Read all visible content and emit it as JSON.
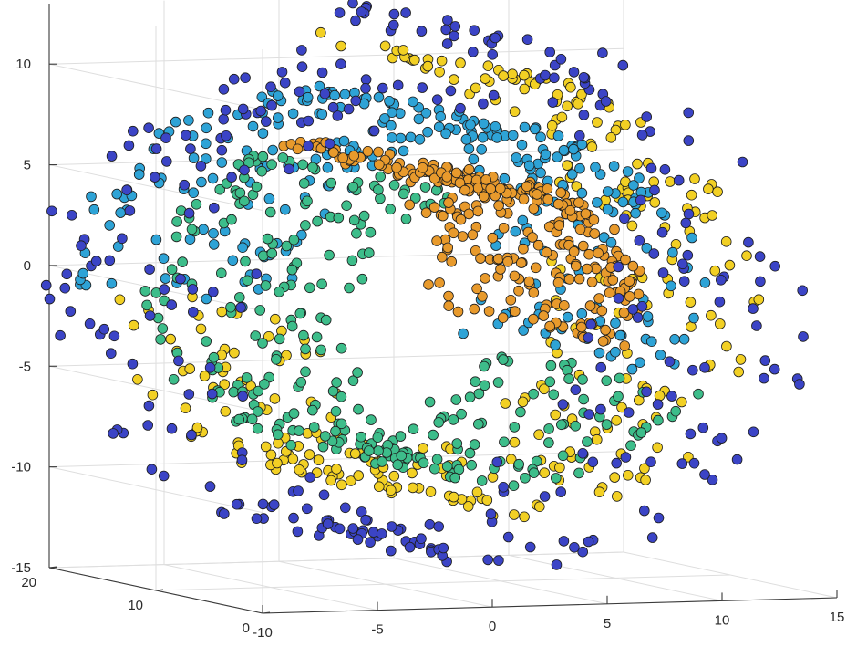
{
  "chart_data": {
    "type": "scatter",
    "subtype": "3d-swiss-roll",
    "title": "",
    "xlabel": "",
    "ylabel": "",
    "zlabel": "",
    "xlim": [
      -10,
      15
    ],
    "ylim": [
      0,
      20
    ],
    "zlim": [
      -15,
      13
    ],
    "x_ticks": [
      "-10",
      "-5",
      "0",
      "5",
      "10",
      "15"
    ],
    "y_ticks": [
      "0",
      "10",
      "20"
    ],
    "z_ticks": [
      "-15",
      "-10",
      "-5",
      "0",
      "5",
      "10"
    ],
    "grid": true,
    "legend": "none",
    "points_per_series": 300,
    "series": [
      {
        "color": "#f2d024",
        "t_range": [
          1.5,
          2.25
        ],
        "radius_range": [
          8.6,
          11.7
        ]
      },
      {
        "color": "#2ea3d6",
        "t_range": [
          0.93,
          1.5
        ],
        "radius_range": [
          7.6,
          10.5
        ]
      },
      {
        "color": "#3dbd8a",
        "t_range": [
          0.3,
          0.93
        ],
        "radius_range": [
          6.4,
          8.8
        ]
      },
      {
        "color": "#e89a2c",
        "t_range": [
          -0.05,
          0.28
        ],
        "radius_range": [
          5.2,
          6.6
        ]
      },
      {
        "color": "#3b44c6",
        "t_range": [
          2.25,
          3.28
        ],
        "radius_range": [
          10.8,
          13.6
        ]
      }
    ]
  }
}
